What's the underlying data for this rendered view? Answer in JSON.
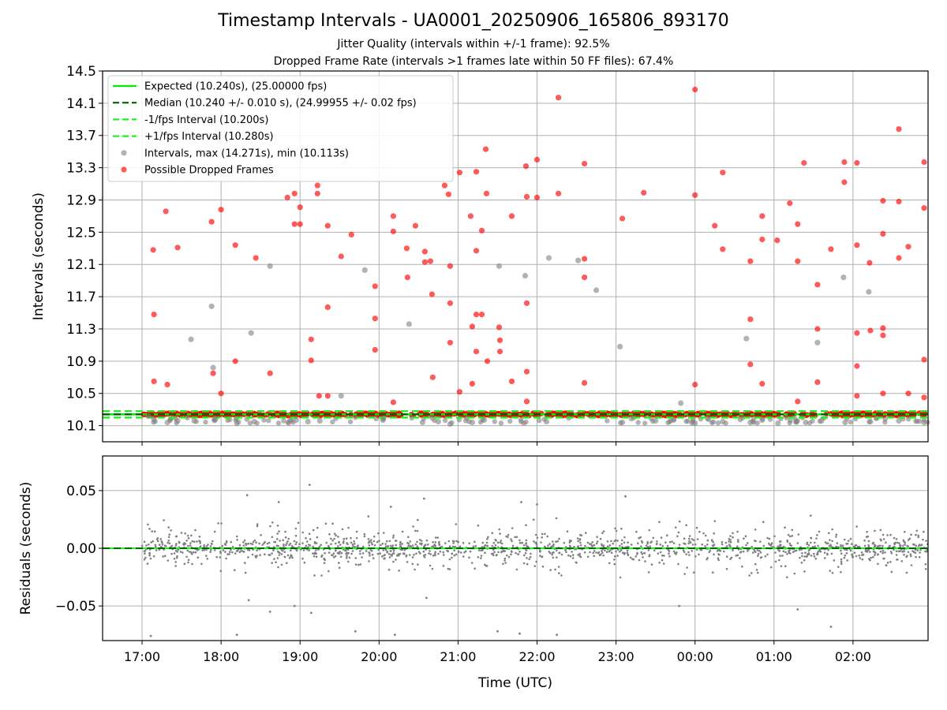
{
  "figure": {
    "title": "Timestamp Intervals - UA0001_20250906_165806_893170",
    "subtitle_1": "Jitter Quality (intervals within +/-1 frame): 92.5%",
    "subtitle_2": "Dropped Frame Rate (intervals >1 frames late within 50 FF files): 67.4%"
  },
  "colors": {
    "expected": "#00ee00",
    "median": "#006400",
    "interval_band": "#22ee22",
    "normal_points": "#808080",
    "dropped_points": "#ff0000",
    "residuals": "#808080",
    "grid": "#b0b0b0"
  },
  "chart_data": [
    {
      "type": "scatter",
      "panel": "top",
      "ylabel": "Intervals (seconds)",
      "xlabel": "",
      "x_unit": "hours since 00:00 UTC (continuous across midnight)",
      "xlim": [
        16.5,
        26.95
      ],
      "ylim": [
        9.9,
        14.5
      ],
      "yticks": [
        10.1,
        10.5,
        10.9,
        11.3,
        11.7,
        12.1,
        12.5,
        12.9,
        13.3,
        13.7,
        14.1,
        14.5
      ],
      "ytick_labels": [
        "10.1",
        "10.5",
        "10.9",
        "11.3",
        "11.7",
        "12.1",
        "12.5",
        "12.9",
        "13.3",
        "13.7",
        "14.1",
        "14.5"
      ],
      "grid": true,
      "legend_position": "top-left",
      "lines": [
        {
          "name": "Expected (10.240s), (25.00000 fps)",
          "y": 10.24,
          "style": "solid",
          "color": "#00ee00"
        },
        {
          "name": "Median (10.240 +/- 0.010 s), (24.99955 +/- 0.02 fps)",
          "y": 10.24,
          "style": "dashed",
          "color": "#006400"
        },
        {
          "name": "-1/fps Interval (10.200s)",
          "y": 10.2,
          "style": "dashed",
          "color": "#22ee22"
        },
        {
          "name": "+1/fps Interval (10.280s)",
          "y": 10.28,
          "style": "dashed",
          "color": "#22ee22"
        }
      ],
      "series": [
        {
          "name": "Intervals, max (14.271s), min (10.113s)",
          "color": "#808080",
          "points": [
            [
              17.08,
              10.22
            ],
            [
              17.15,
              10.18
            ],
            [
              17.32,
              10.14
            ],
            [
              17.45,
              10.16
            ],
            [
              17.62,
              11.17
            ],
            [
              17.66,
              10.16
            ],
            [
              17.88,
              11.58
            ],
            [
              17.9,
              10.82
            ],
            [
              17.93,
              10.18
            ],
            [
              18.2,
              10.13
            ],
            [
              18.38,
              11.25
            ],
            [
              18.42,
              10.15
            ],
            [
              18.62,
              12.08
            ],
            [
              18.95,
              10.17
            ],
            [
              19.1,
              10.15
            ],
            [
              19.25,
              10.16
            ],
            [
              19.52,
              10.47
            ],
            [
              19.82,
              12.03
            ],
            [
              20.05,
              10.17
            ],
            [
              20.38,
              11.36
            ],
            [
              20.55,
              10.14
            ],
            [
              20.75,
              10.15
            ],
            [
              20.9,
              10.12
            ],
            [
              21.18,
              10.14
            ],
            [
              21.33,
              10.17
            ],
            [
              21.52,
              12.08
            ],
            [
              21.85,
              11.96
            ],
            [
              22.12,
              10.15
            ],
            [
              22.15,
              12.18
            ],
            [
              22.52,
              12.15
            ],
            [
              22.75,
              11.78
            ],
            [
              23.05,
              11.08
            ],
            [
              23.08,
              10.14
            ],
            [
              23.5,
              10.16
            ],
            [
              23.82,
              10.38
            ],
            [
              24.0,
              10.13
            ],
            [
              24.35,
              10.15
            ],
            [
              24.65,
              11.18
            ],
            [
              24.7,
              10.14
            ],
            [
              24.85,
              10.17
            ],
            [
              25.05,
              10.13
            ],
            [
              25.4,
              10.14
            ],
            [
              25.55,
              11.13
            ],
            [
              25.6,
              10.16
            ],
            [
              25.88,
              11.94
            ],
            [
              25.9,
              10.14
            ],
            [
              26.2,
              11.76
            ],
            [
              26.22,
              10.15
            ],
            [
              26.58,
              10.16
            ],
            [
              26.9,
              10.14
            ]
          ]
        },
        {
          "name": "Possible Dropped Frames",
          "color": "#ff0000",
          "points": [
            [
              17.14,
              12.28
            ],
            [
              17.15,
              11.48
            ],
            [
              17.15,
              10.65
            ],
            [
              17.3,
              12.76
            ],
            [
              17.32,
              10.61
            ],
            [
              17.45,
              12.31
            ],
            [
              17.88,
              12.63
            ],
            [
              17.9,
              10.75
            ],
            [
              18.0,
              12.78
            ],
            [
              18.0,
              10.5
            ],
            [
              18.18,
              12.34
            ],
            [
              18.18,
              10.9
            ],
            [
              18.44,
              12.18
            ],
            [
              18.62,
              10.75
            ],
            [
              18.84,
              12.93
            ],
            [
              18.93,
              12.98
            ],
            [
              18.93,
              12.6
            ],
            [
              19.0,
              12.81
            ],
            [
              19.0,
              12.6
            ],
            [
              19.14,
              11.17
            ],
            [
              19.14,
              10.91
            ],
            [
              19.22,
              13.08
            ],
            [
              19.22,
              12.98
            ],
            [
              19.24,
              10.47
            ],
            [
              19.35,
              12.58
            ],
            [
              19.35,
              11.57
            ],
            [
              19.35,
              10.47
            ],
            [
              19.52,
              12.2
            ],
            [
              19.65,
              12.47
            ],
            [
              19.95,
              11.83
            ],
            [
              19.95,
              11.43
            ],
            [
              19.95,
              11.04
            ],
            [
              20.18,
              12.7
            ],
            [
              20.18,
              12.51
            ],
            [
              20.18,
              10.39
            ],
            [
              20.35,
              12.3
            ],
            [
              20.36,
              11.94
            ],
            [
              20.46,
              12.58
            ],
            [
              20.58,
              12.26
            ],
            [
              20.58,
              12.13
            ],
            [
              20.65,
              12.14
            ],
            [
              20.67,
              11.73
            ],
            [
              20.68,
              10.7
            ],
            [
              20.83,
              13.08
            ],
            [
              20.88,
              12.97
            ],
            [
              20.9,
              12.08
            ],
            [
              20.9,
              11.62
            ],
            [
              20.9,
              11.13
            ],
            [
              21.02,
              13.24
            ],
            [
              21.02,
              10.52
            ],
            [
              21.16,
              12.7
            ],
            [
              21.18,
              11.33
            ],
            [
              21.18,
              10.62
            ],
            [
              21.23,
              13.25
            ],
            [
              21.23,
              12.27
            ],
            [
              21.23,
              11.48
            ],
            [
              21.23,
              11.02
            ],
            [
              21.3,
              12.52
            ],
            [
              21.3,
              11.48
            ],
            [
              21.35,
              13.53
            ],
            [
              21.36,
              12.98
            ],
            [
              21.37,
              10.9
            ],
            [
              21.52,
              11.32
            ],
            [
              21.53,
              11.16
            ],
            [
              21.53,
              11.02
            ],
            [
              21.68,
              12.7
            ],
            [
              21.68,
              10.65
            ],
            [
              21.86,
              13.32
            ],
            [
              21.87,
              12.94
            ],
            [
              21.87,
              11.62
            ],
            [
              21.87,
              10.77
            ],
            [
              21.87,
              10.4
            ],
            [
              22.0,
              13.4
            ],
            [
              22.0,
              12.93
            ],
            [
              22.27,
              14.17
            ],
            [
              22.27,
              12.98
            ],
            [
              22.6,
              13.35
            ],
            [
              22.6,
              12.17
            ],
            [
              22.6,
              11.94
            ],
            [
              22.6,
              10.63
            ],
            [
              23.08,
              12.67
            ],
            [
              23.35,
              12.99
            ],
            [
              24.0,
              14.27
            ],
            [
              24.0,
              12.96
            ],
            [
              24.0,
              10.61
            ],
            [
              24.25,
              12.58
            ],
            [
              24.35,
              13.24
            ],
            [
              24.35,
              12.29
            ],
            [
              24.7,
              12.14
            ],
            [
              24.7,
              11.42
            ],
            [
              24.7,
              10.86
            ],
            [
              24.85,
              12.7
            ],
            [
              24.85,
              12.41
            ],
            [
              24.85,
              10.62
            ],
            [
              25.04,
              12.4
            ],
            [
              25.2,
              12.86
            ],
            [
              25.3,
              12.6
            ],
            [
              25.3,
              12.14
            ],
            [
              25.3,
              10.4
            ],
            [
              25.38,
              13.36
            ],
            [
              25.55,
              11.85
            ],
            [
              25.55,
              11.3
            ],
            [
              25.55,
              10.64
            ],
            [
              25.72,
              12.29
            ],
            [
              25.89,
              13.37
            ],
            [
              25.89,
              13.12
            ],
            [
              26.05,
              13.36
            ],
            [
              26.05,
              12.34
            ],
            [
              26.05,
              11.25
            ],
            [
              26.05,
              10.84
            ],
            [
              26.05,
              10.47
            ],
            [
              26.21,
              12.12
            ],
            [
              26.22,
              11.28
            ],
            [
              26.38,
              12.89
            ],
            [
              26.38,
              12.48
            ],
            [
              26.38,
              11.31
            ],
            [
              26.38,
              11.22
            ],
            [
              26.38,
              10.5
            ],
            [
              26.58,
              13.78
            ],
            [
              26.58,
              12.88
            ],
            [
              26.58,
              12.18
            ],
            [
              26.7,
              12.32
            ],
            [
              26.7,
              10.5
            ],
            [
              26.9,
              13.37
            ],
            [
              26.9,
              12.8
            ],
            [
              26.9,
              10.92
            ],
            [
              26.9,
              10.45
            ]
          ]
        }
      ]
    },
    {
      "type": "scatter",
      "panel": "bottom",
      "xlabel": "Time (UTC)",
      "ylabel": "Residuals (seconds)",
      "xlim": [
        16.5,
        26.95
      ],
      "ylim": [
        -0.08,
        0.08
      ],
      "yticks": [
        -0.05,
        0.0,
        0.05
      ],
      "ytick_labels": [
        "−0.05",
        "0.00",
        "0.05"
      ],
      "xticks": [
        17,
        18,
        19,
        20,
        21,
        22,
        23,
        24,
        25,
        26
      ],
      "xtick_labels": [
        "17:00",
        "18:00",
        "19:00",
        "20:00",
        "21:00",
        "22:00",
        "23:00",
        "00:00",
        "01:00",
        "02:00"
      ],
      "grid": true,
      "reference_line": {
        "y": 0.0,
        "style": "dashed",
        "color": "#006400"
      },
      "series": [
        {
          "name": "Residuals",
          "color": "#808080",
          "points": [
            [
              19.12,
              0.055
            ],
            [
              18.33,
              0.046
            ],
            [
              20.57,
              0.043
            ],
            [
              20.15,
              0.036
            ],
            [
              21.8,
              0.04
            ],
            [
              22.0,
              0.038
            ],
            [
              23.12,
              0.045
            ],
            [
              18.73,
              0.04
            ],
            [
              17.11,
              -0.076
            ],
            [
              18.2,
              -0.075
            ],
            [
              19.7,
              -0.072
            ],
            [
              20.2,
              -0.075
            ],
            [
              21.5,
              -0.072
            ],
            [
              21.78,
              -0.074
            ],
            [
              22.25,
              -0.075
            ],
            [
              25.72,
              -0.068
            ],
            [
              19.14,
              -0.056
            ],
            [
              18.62,
              -0.055
            ],
            [
              25.3,
              -0.053
            ],
            [
              18.93,
              -0.05
            ],
            [
              20.6,
              -0.043
            ],
            [
              18.35,
              -0.045
            ],
            [
              23.8,
              -0.05
            ]
          ]
        }
      ]
    }
  ]
}
